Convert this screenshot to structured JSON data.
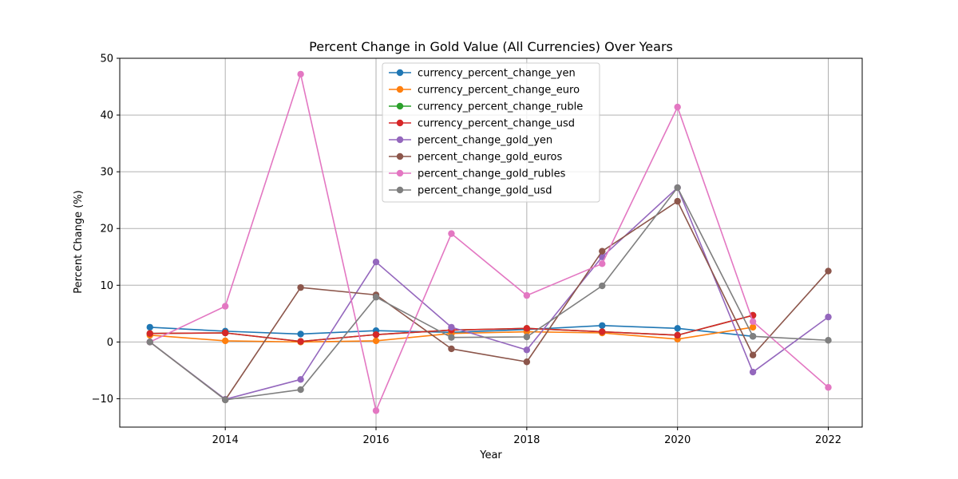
{
  "chart_data": {
    "type": "line",
    "title": "Percent Change in Gold Value (All Currencies) Over Years",
    "xlabel": "Year",
    "ylabel": "Percent Change (%)",
    "xlim": [
      2012.6,
      2022.45
    ],
    "ylim": [
      -15,
      50
    ],
    "x_ticks": [
      2014,
      2016,
      2018,
      2020,
      2022
    ],
    "y_ticks": [
      -10,
      0,
      10,
      20,
      30,
      40,
      50
    ],
    "grid": true,
    "legend_position": "upper center",
    "series": [
      {
        "name": "currency_percent_change_yen",
        "color": "#1f77b4",
        "x": [
          2013,
          2014,
          2015,
          2016,
          2017,
          2018,
          2019,
          2020,
          2021
        ],
        "y": [
          2.6,
          1.9,
          1.4,
          2.0,
          1.7,
          2.2,
          2.9,
          2.4,
          1.0
        ]
      },
      {
        "name": "currency_percent_change_euro",
        "color": "#ff7f0e",
        "x": [
          2013,
          2014,
          2015,
          2016,
          2017,
          2018,
          2019,
          2020,
          2021
        ],
        "y": [
          1.2,
          0.2,
          0.0,
          0.2,
          1.5,
          1.8,
          1.6,
          0.5,
          2.6
        ]
      },
      {
        "name": "currency_percent_change_ruble",
        "color": "#2ca02c",
        "x": [
          2013,
          2014,
          2015,
          2016,
          2017,
          2018,
          2019,
          2020,
          2021
        ],
        "y": [
          1.5,
          1.6,
          0.1,
          1.3,
          2.1,
          2.4,
          1.8,
          1.2,
          4.7
        ]
      },
      {
        "name": "currency_percent_change_usd",
        "color": "#d62728",
        "x": [
          2013,
          2014,
          2015,
          2016,
          2017,
          2018,
          2019,
          2020,
          2021
        ],
        "y": [
          1.5,
          1.6,
          0.1,
          1.3,
          2.1,
          2.4,
          1.8,
          1.2,
          4.7
        ]
      },
      {
        "name": "percent_change_gold_yen",
        "color": "#9467bd",
        "x": [
          2013,
          2014,
          2015,
          2016,
          2017,
          2018,
          2019,
          2020,
          2021,
          2022
        ],
        "y": [
          0.0,
          -10.1,
          -6.6,
          14.1,
          2.6,
          -1.4,
          15.0,
          27.2,
          -5.3,
          4.4
        ]
      },
      {
        "name": "percent_change_gold_euros",
        "color": "#8c564b",
        "x": [
          2013,
          2014,
          2015,
          2016,
          2017,
          2018,
          2019,
          2020,
          2021,
          2022
        ],
        "y": [
          0.0,
          -10.2,
          9.6,
          8.3,
          -1.2,
          -3.5,
          16.0,
          24.8,
          -2.3,
          12.5
        ]
      },
      {
        "name": "percent_change_gold_rubles",
        "color": "#e377c2",
        "x": [
          2013,
          2014,
          2015,
          2016,
          2017,
          2018,
          2019,
          2020,
          2021,
          2022
        ],
        "y": [
          0.0,
          6.3,
          47.2,
          -12.1,
          19.1,
          8.2,
          13.8,
          41.4,
          3.6,
          -8.0
        ]
      },
      {
        "name": "percent_change_gold_usd",
        "color": "#7f7f7f",
        "x": [
          2013,
          2014,
          2015,
          2016,
          2017,
          2018,
          2019,
          2020,
          2021,
          2022
        ],
        "y": [
          0.0,
          -10.2,
          -8.4,
          7.9,
          0.8,
          0.9,
          9.9,
          27.2,
          1.0,
          0.3
        ]
      }
    ]
  }
}
